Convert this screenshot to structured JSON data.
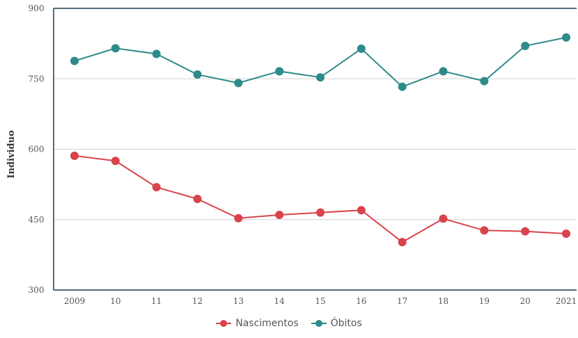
{
  "chart_data": {
    "type": "line",
    "categories": [
      "2009",
      "10",
      "11",
      "12",
      "13",
      "14",
      "15",
      "16",
      "17",
      "18",
      "19",
      "20",
      "2021"
    ],
    "ylabel": "Individuo",
    "xlabel": "",
    "ylim": [
      300,
      900
    ],
    "yticks": [
      "300",
      "450",
      "600",
      "750",
      "900"
    ],
    "grid": true,
    "legend_position": "bottom-center",
    "series": [
      {
        "name": "Nascimentos",
        "color": "#d9434b",
        "values": [
          586,
          575,
          519,
          494,
          453,
          460,
          465,
          470,
          402,
          452,
          427,
          425,
          420
        ]
      },
      {
        "name": "Óbitos",
        "color": "#2e8b8a",
        "values": [
          788,
          815,
          803,
          759,
          741,
          766,
          753,
          814,
          733,
          766,
          745,
          820,
          838
        ]
      }
    ]
  }
}
